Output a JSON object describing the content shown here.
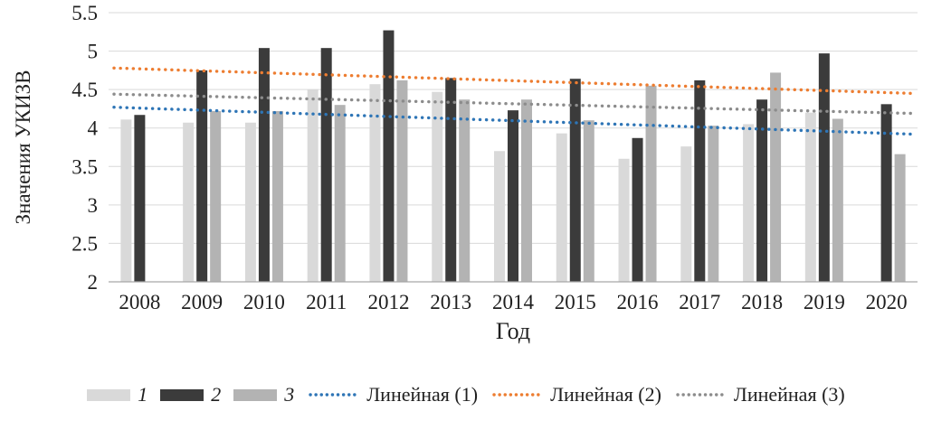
{
  "chart_data": {
    "type": "bar",
    "title": "",
    "ylabel": "Значения УКИЗВ",
    "xlabel": "Год",
    "ylim": [
      2,
      5.5
    ],
    "ytick_step": 0.5,
    "yticks": [
      "2",
      "2.5",
      "3",
      "3.5",
      "4",
      "4.5",
      "5",
      "5.5"
    ],
    "grid": true,
    "legend_position": "bottom",
    "categories": [
      "2008",
      "2009",
      "2010",
      "2011",
      "2012",
      "2013",
      "2014",
      "2015",
      "2016",
      "2017",
      "2018",
      "2019",
      "2020"
    ],
    "series": [
      {
        "name": "1",
        "color": "#d9d9d9",
        "values": [
          4.11,
          4.07,
          4.07,
          4.5,
          4.57,
          4.47,
          3.7,
          3.93,
          3.6,
          3.76,
          4.05,
          4.2,
          null
        ]
      },
      {
        "name": "2",
        "color": "#3b3b3b",
        "values": [
          4.17,
          4.75,
          5.04,
          5.04,
          5.27,
          4.65,
          4.23,
          4.64,
          3.87,
          4.62,
          4.37,
          4.97,
          4.31
        ]
      },
      {
        "name": "3",
        "color": "#b3b3b3",
        "values": [
          null,
          4.22,
          4.22,
          4.3,
          4.62,
          4.37,
          4.37,
          4.1,
          4.55,
          4.03,
          4.72,
          4.12,
          3.66
        ]
      }
    ],
    "trendlines": [
      {
        "name": "Линейная (1)",
        "color": "#2e75b6",
        "start": 4.27,
        "end": 3.92
      },
      {
        "name": "Линейная (2)",
        "color": "#ed7d31",
        "start": 4.78,
        "end": 4.45
      },
      {
        "name": "Линейная (3)",
        "color": "#8c8c8c",
        "start": 4.44,
        "end": 4.19
      }
    ],
    "colors": {
      "grid": "#d9d9d9",
      "axis": "#a6a6a6",
      "text": "#1f1f1f"
    }
  }
}
